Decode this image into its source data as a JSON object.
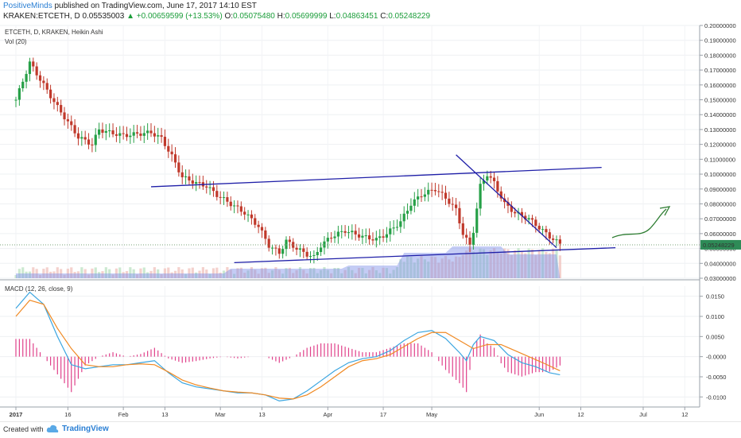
{
  "header": {
    "author": "PositiveMinds",
    "published_text": "published on TradingView.com, June 17, 2017 14:10 EST",
    "symbol_line_prefix": "KRAKEN:ETCETH, D",
    "last": "0.05535003",
    "change": "+0.00659599 (+13.53%)",
    "o_label": "O:",
    "o_val": "0.05075480",
    "h_label": "H:",
    "h_val": "0.05699999",
    "l_label": "L:",
    "l_val": "0.04863451",
    "c_label": "C:",
    "c_val": "0.05248229"
  },
  "chart_labels": {
    "series_title": "ETCETH, D, KRAKEN, Heikin Ashi",
    "vol_label": "Vol (20)",
    "macd_label": "MACD (12, 26, close, 9)",
    "last_price_tag": "0.05248229"
  },
  "footer": {
    "created_with": "Created with",
    "brand": "TradingView"
  },
  "colors": {
    "up": "#26a047",
    "down": "#c0392b",
    "trendline": "#1f1fa8",
    "arrow": "#2e7d32",
    "macd_line": "#3aa5e0",
    "signal_line": "#f08a24",
    "histogram": "#e0408a",
    "volume_area": "#7d8fe8",
    "last_tag_bg": "#2e8b57"
  },
  "chart_data": [
    {
      "type": "candlestick",
      "title": "ETCETH, D, KRAKEN, Heikin Ashi",
      "x_tick_labels": [
        "2017",
        "16",
        "Feb",
        "13",
        "Mar",
        "13",
        "Apr",
        "17",
        "May",
        "Jun",
        "12",
        "Jul",
        "12"
      ],
      "y_ticks": [
        0.03,
        0.04,
        0.05,
        0.06,
        0.07,
        0.08,
        0.09,
        0.1,
        0.11,
        0.12,
        0.13,
        0.14,
        0.15,
        0.16,
        0.17,
        0.18,
        0.19,
        0.2
      ],
      "y_tick_labels": [
        "0.03000000",
        "0.04000000",
        "0.05000000",
        "0.06000000",
        "0.07000000",
        "0.08000000",
        "0.09000000",
        "0.10000000",
        "0.11000000",
        "0.12000000",
        "0.13000000",
        "0.14000000",
        "0.15000000",
        "0.16000000",
        "0.17000000",
        "0.18000000",
        "0.19000000",
        "0.20000000"
      ],
      "ylim": [
        0.03,
        0.2
      ],
      "last_price": 0.05248229,
      "candle_close_path": [
        [
          0,
          0.15
        ],
        [
          4,
          0.175
        ],
        [
          8,
          0.16
        ],
        [
          12,
          0.145
        ],
        [
          15,
          0.135
        ],
        [
          18,
          0.125
        ],
        [
          22,
          0.12
        ],
        [
          24,
          0.13
        ],
        [
          27,
          0.128
        ],
        [
          31,
          0.126
        ],
        [
          35,
          0.127
        ],
        [
          39,
          0.128
        ],
        [
          42,
          0.124
        ],
        [
          45,
          0.112
        ],
        [
          48,
          0.098
        ],
        [
          52,
          0.094
        ],
        [
          55,
          0.092
        ],
        [
          58,
          0.086
        ],
        [
          62,
          0.08
        ],
        [
          66,
          0.074
        ],
        [
          70,
          0.065
        ],
        [
          73,
          0.052
        ],
        [
          76,
          0.047
        ],
        [
          78,
          0.055
        ],
        [
          81,
          0.05
        ],
        [
          84,
          0.046
        ],
        [
          86,
          0.044
        ],
        [
          88,
          0.052
        ],
        [
          91,
          0.058
        ],
        [
          95,
          0.062
        ],
        [
          100,
          0.058
        ],
        [
          104,
          0.056
        ],
        [
          107,
          0.06
        ],
        [
          111,
          0.068
        ],
        [
          114,
          0.08
        ],
        [
          117,
          0.086
        ],
        [
          121,
          0.09
        ],
        [
          124,
          0.084
        ],
        [
          127,
          0.076
        ],
        [
          129,
          0.06
        ],
        [
          131,
          0.052
        ],
        [
          132,
          0.062
        ],
        [
          134,
          0.092
        ],
        [
          136,
          0.1
        ],
        [
          138,
          0.094
        ],
        [
          141,
          0.08
        ],
        [
          144,
          0.074
        ],
        [
          148,
          0.07
        ],
        [
          151,
          0.064
        ],
        [
          154,
          0.058
        ],
        [
          157,
          0.053
        ]
      ],
      "trendlines": [
        {
          "name": "upper-channel",
          "from": [
            39,
            0.0915
          ],
          "to": [
            169,
            0.1045
          ]
        },
        {
          "name": "lower-channel",
          "from": [
            63,
            0.0405
          ],
          "to": [
            173,
            0.0505
          ]
        },
        {
          "name": "descending-resistance",
          "from": [
            127,
            0.113
          ],
          "to": [
            156,
            0.0505
          ]
        }
      ]
    },
    {
      "type": "line",
      "title": "MACD (12, 26, close, 9)",
      "y_tick_labels": [
        "0.0150",
        "0.0100",
        "0.0050",
        "-0.0000",
        "-0.0050",
        "-0.0100"
      ],
      "y_ticks": [
        0.015,
        0.01,
        0.005,
        0.0,
        -0.005,
        -0.01
      ],
      "ylim": [
        -0.0125,
        0.0175
      ],
      "series": [
        {
          "name": "MACD",
          "points": [
            [
              0,
              0.012
            ],
            [
              4,
              0.016
            ],
            [
              8,
              0.013
            ],
            [
              12,
              0.005
            ],
            [
              16,
              -0.002
            ],
            [
              20,
              -0.003
            ],
            [
              24,
              -0.0025
            ],
            [
              28,
              -0.002
            ],
            [
              32,
              -0.002
            ],
            [
              36,
              -0.0015
            ],
            [
              40,
              -0.001
            ],
            [
              44,
              -0.004
            ],
            [
              48,
              -0.0065
            ],
            [
              52,
              -0.0075
            ],
            [
              56,
              -0.008
            ],
            [
              60,
              -0.0085
            ],
            [
              64,
              -0.009
            ],
            [
              68,
              -0.009
            ],
            [
              72,
              -0.0095
            ],
            [
              76,
              -0.011
            ],
            [
              80,
              -0.0105
            ],
            [
              84,
              -0.0085
            ],
            [
              88,
              -0.006
            ],
            [
              92,
              -0.0035
            ],
            [
              96,
              -0.0015
            ],
            [
              100,
              -0.0005
            ],
            [
              104,
              0.0
            ],
            [
              108,
              0.0015
            ],
            [
              112,
              0.004
            ],
            [
              116,
              0.006
            ],
            [
              120,
              0.0065
            ],
            [
              124,
              0.0045
            ],
            [
              128,
              0.001
            ],
            [
              130,
              -0.001
            ],
            [
              132,
              0.003
            ],
            [
              134,
              0.005
            ],
            [
              138,
              0.004
            ],
            [
              142,
              0.0005
            ],
            [
              146,
              -0.0015
            ],
            [
              150,
              -0.0025
            ],
            [
              154,
              -0.004
            ],
            [
              157,
              -0.0045
            ]
          ]
        },
        {
          "name": "Signal",
          "points": [
            [
              0,
              0.01
            ],
            [
              4,
              0.014
            ],
            [
              8,
              0.013
            ],
            [
              12,
              0.007
            ],
            [
              16,
              0.002
            ],
            [
              20,
              -0.002
            ],
            [
              24,
              -0.0025
            ],
            [
              28,
              -0.0025
            ],
            [
              32,
              -0.002
            ],
            [
              36,
              -0.0018
            ],
            [
              40,
              -0.002
            ],
            [
              44,
              -0.0038
            ],
            [
              48,
              -0.0058
            ],
            [
              52,
              -0.007
            ],
            [
              56,
              -0.0078
            ],
            [
              60,
              -0.0085
            ],
            [
              64,
              -0.0088
            ],
            [
              68,
              -0.009
            ],
            [
              72,
              -0.0095
            ],
            [
              76,
              -0.0103
            ],
            [
              80,
              -0.0105
            ],
            [
              84,
              -0.0095
            ],
            [
              88,
              -0.0075
            ],
            [
              92,
              -0.005
            ],
            [
              96,
              -0.0025
            ],
            [
              100,
              -0.001
            ],
            [
              104,
              -0.0005
            ],
            [
              108,
              0.0005
            ],
            [
              112,
              0.0025
            ],
            [
              116,
              0.0045
            ],
            [
              120,
              0.006
            ],
            [
              124,
              0.006
            ],
            [
              128,
              0.004
            ],
            [
              132,
              0.002
            ],
            [
              136,
              0.003
            ],
            [
              140,
              0.003
            ],
            [
              144,
              0.0015
            ],
            [
              148,
              0.0
            ],
            [
              152,
              -0.0015
            ],
            [
              157,
              -0.0035
            ]
          ]
        }
      ]
    }
  ]
}
